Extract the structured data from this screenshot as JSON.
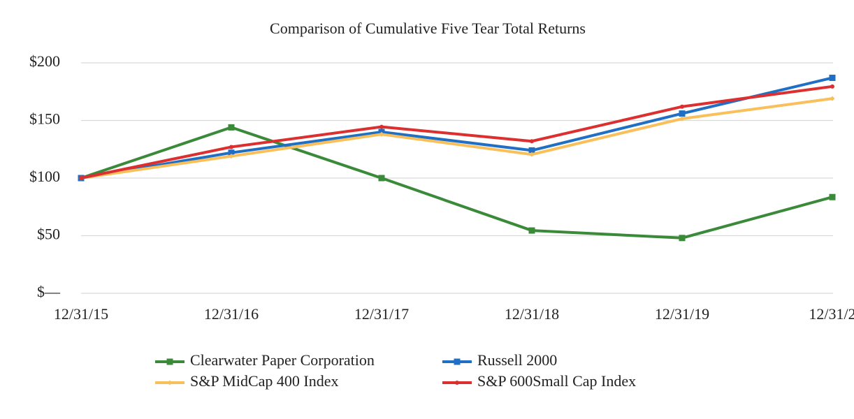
{
  "chart_data": {
    "type": "line",
    "title": "Comparison of Cumulative Five Tear Total Returns",
    "categories": [
      "12/31/15",
      "12/31/16",
      "12/31/17",
      "12/31/18",
      "12/31/19",
      "12/31/2"
    ],
    "series": [
      {
        "name": "Clearwater Paper Corporation",
        "color": "#3a8a3a",
        "marker": "square",
        "values": [
          100,
          144,
          100,
          54.5,
          48,
          83.5
        ]
      },
      {
        "name": "Russell 2000",
        "color": "#1f6fc5",
        "marker": "square",
        "values": [
          100,
          122,
          140,
          124,
          156,
          187
        ]
      },
      {
        "name": "S&P MidCap 400 Index",
        "color": "#f9bf5a",
        "marker": "diamond",
        "values": [
          100,
          119,
          138,
          120.5,
          151.5,
          169
        ]
      },
      {
        "name": "S&P 600Small Cap Index",
        "color": "#dc2f2f",
        "marker": "circle",
        "values": [
          100,
          127,
          144.5,
          132,
          162,
          179.5
        ]
      }
    ],
    "ylim": [
      0,
      200
    ],
    "yticks": [
      {
        "value": 0,
        "label": "$—"
      },
      {
        "value": 50,
        "label": "$50"
      },
      {
        "value": 100,
        "label": "$100"
      },
      {
        "value": 150,
        "label": "$150"
      },
      {
        "value": 200,
        "label": "$200"
      }
    ],
    "grid": true,
    "legend": "bottom"
  }
}
